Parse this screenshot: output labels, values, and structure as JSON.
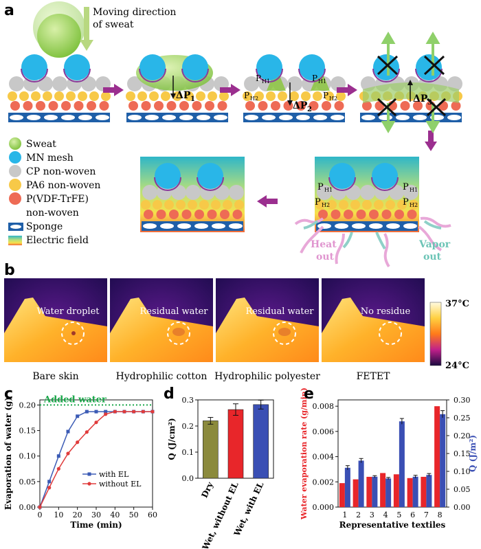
{
  "panel_a": {
    "letter": "a",
    "moving_direction": [
      "Moving direction",
      "of sweat"
    ],
    "delta_p1": "ΔP",
    "delta_p1_sub": "1",
    "delta_p2": "ΔP",
    "delta_p2_sub": "2",
    "delta_p3": "ΔP",
    "delta_p3_sub": "3",
    "p_h1": "P",
    "p_h1_sub": "H1",
    "p_h2": "P",
    "p_h2_sub": "H2",
    "heat_out": [
      "Heat",
      "out"
    ],
    "vapor_out": [
      "Vapor",
      "out"
    ],
    "legend": [
      {
        "label": "Sweat",
        "color": "#8cc63f"
      },
      {
        "label": "MN mesh",
        "color": "#29b6e8"
      },
      {
        "label": "CP  non-woven",
        "color": "#c8c8c8"
      },
      {
        "label": "PA6  non-woven",
        "color": "#f7c948"
      },
      {
        "label": "P(VDF-TrFE)",
        "color": "#ee6b55"
      },
      {
        "label": "non-woven",
        "color": ""
      },
      {
        "label": "Sponge",
        "color": "#1f5fa8"
      },
      {
        "label": "Electric field",
        "color": "gradient"
      }
    ]
  },
  "panel_b": {
    "letter": "b",
    "scale_max": "37°C",
    "scale_min": "24°C",
    "images": [
      {
        "annotation": "Water droplet",
        "caption": "Bare skin"
      },
      {
        "annotation": "Residual water",
        "caption": "Hydrophilic cotton"
      },
      {
        "annotation": "Residual water",
        "caption": "Hydrophilic polyester"
      },
      {
        "annotation": "No residue",
        "caption": "FETET"
      }
    ]
  },
  "chart_data": [
    {
      "panel": "c",
      "type": "line",
      "xlabel": "Time (min)",
      "ylabel": "Evaporation of water (g)",
      "xlim": [
        0,
        60
      ],
      "ylim": [
        0,
        0.21
      ],
      "xticks": [
        "0",
        "10",
        "20",
        "30",
        "40",
        "50",
        "60"
      ],
      "yticks": [
        "0.00",
        "0.05",
        "0.10",
        "0.15",
        "0.20"
      ],
      "annotation": "Added water",
      "reference_line": 0.2,
      "series": [
        {
          "name": "with EL",
          "color": "#3b5bb5",
          "x": [
            0,
            5,
            10,
            15,
            20,
            25,
            30,
            35,
            40,
            45,
            50,
            55,
            60
          ],
          "y": [
            0.0,
            0.05,
            0.1,
            0.148,
            0.178,
            0.187,
            0.187,
            0.187,
            0.187,
            0.187,
            0.187,
            0.187,
            0.187
          ]
        },
        {
          "name": "without EL",
          "color": "#e03b3b",
          "x": [
            0,
            5,
            10,
            15,
            20,
            25,
            30,
            35,
            40,
            45,
            50,
            55,
            60
          ],
          "y": [
            0.0,
            0.038,
            0.075,
            0.105,
            0.127,
            0.147,
            0.166,
            0.182,
            0.187,
            0.187,
            0.187,
            0.187,
            0.187
          ]
        }
      ]
    },
    {
      "panel": "d",
      "type": "bar",
      "ylabel": "Q (J/cm²)",
      "ylim": [
        0,
        0.3
      ],
      "yticks": [
        "0.0",
        "0.1",
        "0.2",
        "0.3"
      ],
      "categories": [
        "Dry",
        "Wet, without EL",
        "Wet, with EL"
      ],
      "values": [
        0.22,
        0.263,
        0.282
      ],
      "errors": [
        0.013,
        0.022,
        0.017
      ],
      "colors": [
        "#8b8a3c",
        "#e8262a",
        "#3a4fb4"
      ]
    },
    {
      "panel": "e",
      "type": "bar",
      "xlabel": "Representative textiles",
      "ylabel_left": "Water evaporation rate (g/min)",
      "ylabel_right": "Q (J/m²)",
      "categories": [
        "1",
        "2",
        "3",
        "4",
        "5",
        "6",
        "7",
        "8"
      ],
      "ylim_left": [
        0,
        0.0085
      ],
      "ylim_right": [
        0,
        0.3
      ],
      "yticks_left": [
        "0.000",
        "0.002",
        "0.004",
        "0.006",
        "0.008"
      ],
      "yticks_right": [
        "0.00",
        "0.05",
        "0.10",
        "0.15",
        "0.20",
        "0.25",
        "0.30"
      ],
      "series": [
        {
          "name": "Water evaporation rate",
          "axis": "left",
          "color": "#e8262a",
          "values": [
            0.0019,
            0.0022,
            0.0024,
            0.0027,
            0.0026,
            0.0023,
            0.0024,
            0.008
          ]
        },
        {
          "name": "Q",
          "axis": "right",
          "color": "#3a4fb4",
          "values": [
            0.11,
            0.13,
            0.085,
            0.08,
            0.24,
            0.085,
            0.09,
            0.26
          ],
          "errors": [
            0.006,
            0.006,
            0.003,
            0.003,
            0.008,
            0.004,
            0.004,
            0.01
          ]
        }
      ]
    }
  ]
}
